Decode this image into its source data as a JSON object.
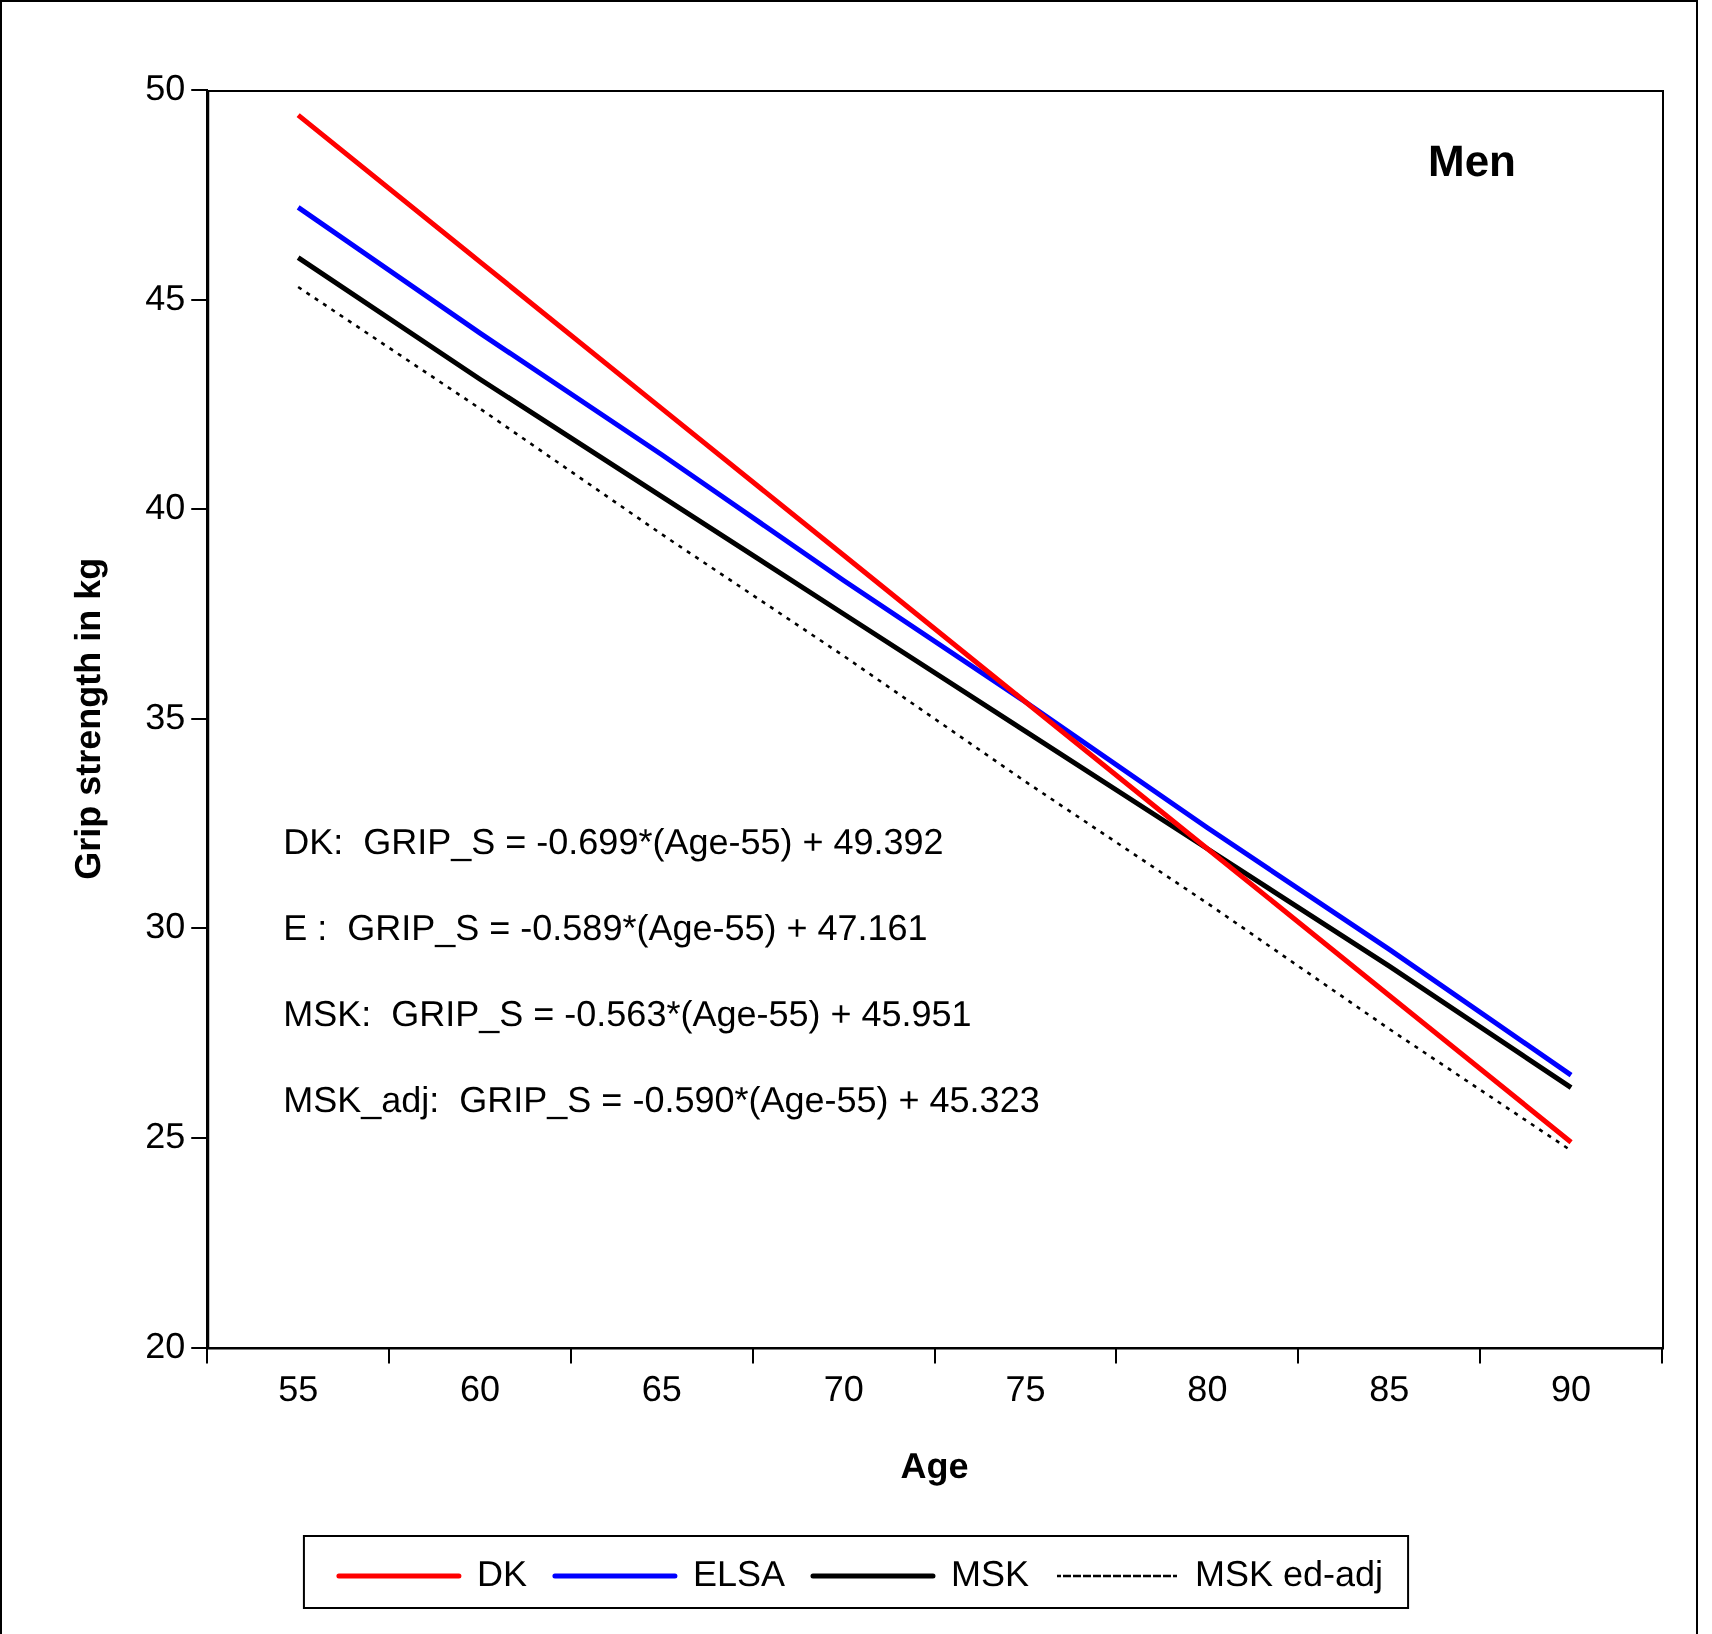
{
  "chart_data": {
    "type": "line",
    "xlabel": "Age",
    "ylabel": "Grip strength in kg",
    "categories": [
      "55",
      "60",
      "65",
      "70",
      "75",
      "80",
      "85",
      "90"
    ],
    "series": [
      {
        "name": "DK",
        "color": "#ff0000",
        "values": [
          49.4,
          45.9,
          42.4,
          38.9,
          35.4,
          31.9,
          28.4,
          24.9
        ]
      },
      {
        "name": "ELSA",
        "color": "#0000ff",
        "values": [
          47.2,
          44.2,
          41.3,
          38.3,
          35.4,
          32.4,
          29.5,
          26.5
        ]
      },
      {
        "name": "MSK",
        "color": "#000000",
        "values": [
          46.0,
          43.1,
          40.3,
          37.5,
          34.7,
          31.9,
          29.1,
          26.2
        ]
      },
      {
        "name": "MSK ed-adj",
        "color": "#000000",
        "line_style": "dotted",
        "values": [
          45.3,
          42.4,
          39.4,
          36.5,
          33.5,
          30.6,
          27.6,
          24.7
        ]
      }
    ],
    "ylim": [
      20,
      50
    ],
    "yticks": [
      20,
      25,
      30,
      35,
      40,
      45,
      50
    ],
    "grid": false,
    "legend": "bottom",
    "marker": "none",
    "line_style": "solid",
    "annotations": [
      "Men",
      "DK:  GRIP_S = -0.699*(Age-55) + 49.392",
      "E :  GRIP_S = -0.589*(Age-55) + 47.161",
      "MSK:  GRIP_S = -0.563*(Age-55) + 45.951",
      "MSK_adj:  GRIP_S = -0.590*(Age-55) + 45.323"
    ]
  }
}
